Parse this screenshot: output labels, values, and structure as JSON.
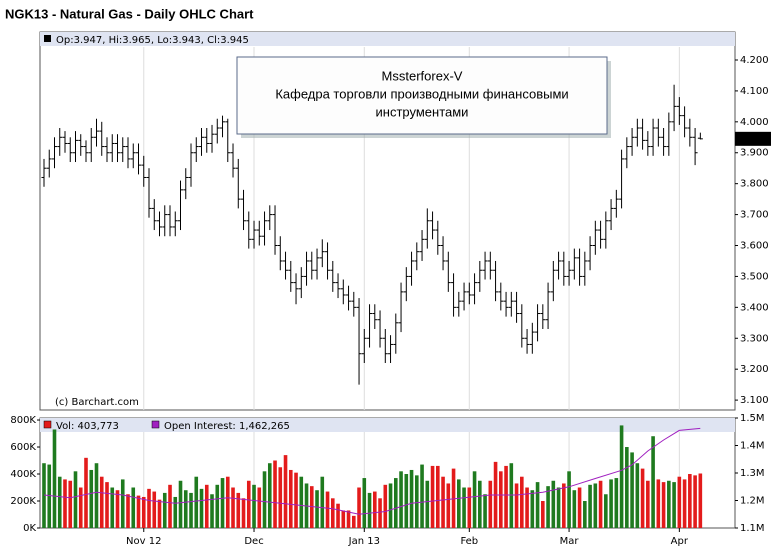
{
  "chart_data": [
    {
      "type": "ohlc",
      "title": "NGK13 - Natural Gas - Daily OHLC Chart",
      "header": "Op:3.947, Hi:3.965, Lo:3.943, Cl:3.945",
      "last_price_label": "3.945",
      "annotation": [
        "Mssterforex-V",
        "Кафедра торговли производными финансовыми",
        "инструментами"
      ],
      "credit": "(c) Barchart.com",
      "color": "#000000",
      "xlim": [
        -0.76,
        131.6
      ],
      "ylim": [
        3.068,
        4.242
      ],
      "yticks": [
        {
          "value": 3.1,
          "label": "3.100"
        },
        {
          "value": 3.2,
          "label": "3.200"
        },
        {
          "value": 3.3,
          "label": "3.300"
        },
        {
          "value": 3.4,
          "label": "3.400"
        },
        {
          "value": 3.5,
          "label": "3.500"
        },
        {
          "value": 3.6,
          "label": "3.600"
        },
        {
          "value": 3.7,
          "label": "3.700"
        },
        {
          "value": 3.8,
          "label": "3.800"
        },
        {
          "value": 3.9,
          "label": "3.900"
        },
        {
          "value": 4.0,
          "label": "4.000"
        },
        {
          "value": 4.1,
          "label": "4.100"
        },
        {
          "value": 4.2,
          "label": "4.200"
        }
      ],
      "grid": "x",
      "ohlc": [
        [
          3.82,
          3.88,
          3.79,
          3.85
        ],
        [
          3.85,
          3.91,
          3.82,
          3.88
        ],
        [
          3.88,
          3.95,
          3.85,
          3.92
        ],
        [
          3.92,
          3.98,
          3.89,
          3.95
        ],
        [
          3.95,
          3.97,
          3.9,
          3.93
        ],
        [
          3.93,
          3.95,
          3.87,
          3.9
        ],
        [
          3.9,
          3.97,
          3.87,
          3.94
        ],
        [
          3.94,
          3.96,
          3.89,
          3.92
        ],
        [
          3.92,
          3.94,
          3.87,
          3.9
        ],
        [
          3.9,
          3.98,
          3.87,
          3.95
        ],
        [
          3.95,
          4.01,
          3.92,
          3.97
        ],
        [
          3.97,
          4.0,
          3.89,
          3.92
        ],
        [
          3.92,
          3.95,
          3.87,
          3.9
        ],
        [
          3.9,
          3.96,
          3.87,
          3.93
        ],
        [
          3.93,
          3.96,
          3.87,
          3.9
        ],
        [
          3.9,
          3.95,
          3.87,
          3.92
        ],
        [
          3.92,
          3.95,
          3.85,
          3.88
        ],
        [
          3.88,
          3.93,
          3.85,
          3.9
        ],
        [
          3.9,
          3.93,
          3.83,
          3.86
        ],
        [
          3.86,
          3.89,
          3.79,
          3.82
        ],
        [
          3.82,
          3.85,
          3.69,
          3.72
        ],
        [
          3.72,
          3.75,
          3.65,
          3.68
        ],
        [
          3.68,
          3.71,
          3.63,
          3.66
        ],
        [
          3.66,
          3.73,
          3.63,
          3.7
        ],
        [
          3.7,
          3.73,
          3.63,
          3.66
        ],
        [
          3.66,
          3.71,
          3.63,
          3.68
        ],
        [
          3.68,
          3.81,
          3.65,
          3.78
        ],
        [
          3.78,
          3.85,
          3.75,
          3.82
        ],
        [
          3.82,
          3.93,
          3.79,
          3.9
        ],
        [
          3.9,
          3.95,
          3.87,
          3.92
        ],
        [
          3.92,
          3.98,
          3.89,
          3.95
        ],
        [
          3.95,
          3.98,
          3.9,
          3.93
        ],
        [
          3.93,
          3.99,
          3.9,
          3.96
        ],
        [
          3.96,
          4.01,
          3.93,
          3.98
        ],
        [
          3.98,
          4.02,
          3.95,
          4.0
        ],
        [
          4.0,
          4.01,
          3.87,
          3.9
        ],
        [
          3.9,
          3.93,
          3.82,
          3.85
        ],
        [
          3.85,
          3.88,
          3.72,
          3.75
        ],
        [
          3.75,
          3.78,
          3.65,
          3.68
        ],
        [
          3.68,
          3.71,
          3.59,
          3.62
        ],
        [
          3.62,
          3.68,
          3.59,
          3.65
        ],
        [
          3.65,
          3.68,
          3.6,
          3.63
        ],
        [
          3.63,
          3.71,
          3.6,
          3.68
        ],
        [
          3.68,
          3.73,
          3.65,
          3.7
        ],
        [
          3.7,
          3.73,
          3.57,
          3.6
        ],
        [
          3.6,
          3.63,
          3.52,
          3.55
        ],
        [
          3.55,
          3.58,
          3.49,
          3.52
        ],
        [
          3.52,
          3.55,
          3.45,
          3.48
        ],
        [
          3.48,
          3.51,
          3.41,
          3.46
        ],
        [
          3.46,
          3.53,
          3.43,
          3.5
        ],
        [
          3.5,
          3.58,
          3.47,
          3.55
        ],
        [
          3.55,
          3.58,
          3.49,
          3.52
        ],
        [
          3.52,
          3.59,
          3.49,
          3.56
        ],
        [
          3.56,
          3.62,
          3.53,
          3.58
        ],
        [
          3.58,
          3.61,
          3.49,
          3.52
        ],
        [
          3.52,
          3.55,
          3.45,
          3.48
        ],
        [
          3.48,
          3.51,
          3.43,
          3.46
        ],
        [
          3.46,
          3.49,
          3.41,
          3.44
        ],
        [
          3.44,
          3.47,
          3.39,
          3.42
        ],
        [
          3.42,
          3.45,
          3.37,
          3.4
        ],
        [
          3.4,
          3.43,
          3.15,
          3.25
        ],
        [
          3.25,
          3.33,
          3.22,
          3.3
        ],
        [
          3.3,
          3.41,
          3.27,
          3.38
        ],
        [
          3.38,
          3.41,
          3.33,
          3.36
        ],
        [
          3.36,
          3.39,
          3.27,
          3.3
        ],
        [
          3.3,
          3.33,
          3.22,
          3.25
        ],
        [
          3.25,
          3.31,
          3.22,
          3.28
        ],
        [
          3.28,
          3.38,
          3.25,
          3.35
        ],
        [
          3.35,
          3.48,
          3.32,
          3.45
        ],
        [
          3.45,
          3.53,
          3.42,
          3.5
        ],
        [
          3.5,
          3.58,
          3.47,
          3.55
        ],
        [
          3.55,
          3.61,
          3.52,
          3.58
        ],
        [
          3.58,
          3.65,
          3.55,
          3.62
        ],
        [
          3.62,
          3.72,
          3.59,
          3.68
        ],
        [
          3.68,
          3.71,
          3.62,
          3.65
        ],
        [
          3.65,
          3.68,
          3.57,
          3.6
        ],
        [
          3.6,
          3.63,
          3.52,
          3.55
        ],
        [
          3.55,
          3.58,
          3.45,
          3.48
        ],
        [
          3.48,
          3.51,
          3.37,
          3.4
        ],
        [
          3.4,
          3.45,
          3.37,
          3.42
        ],
        [
          3.42,
          3.48,
          3.39,
          3.45
        ],
        [
          3.45,
          3.48,
          3.41,
          3.44
        ],
        [
          3.44,
          3.51,
          3.41,
          3.48
        ],
        [
          3.48,
          3.55,
          3.45,
          3.52
        ],
        [
          3.52,
          3.58,
          3.49,
          3.55
        ],
        [
          3.55,
          3.58,
          3.49,
          3.52
        ],
        [
          3.52,
          3.55,
          3.42,
          3.45
        ],
        [
          3.45,
          3.48,
          3.39,
          3.42
        ],
        [
          3.42,
          3.45,
          3.37,
          3.4
        ],
        [
          3.4,
          3.45,
          3.37,
          3.42
        ],
        [
          3.42,
          3.45,
          3.35,
          3.38
        ],
        [
          3.38,
          3.41,
          3.27,
          3.3
        ],
        [
          3.3,
          3.33,
          3.25,
          3.28
        ],
        [
          3.28,
          3.35,
          3.25,
          3.32
        ],
        [
          3.32,
          3.41,
          3.29,
          3.38
        ],
        [
          3.38,
          3.41,
          3.33,
          3.36
        ],
        [
          3.36,
          3.48,
          3.33,
          3.45
        ],
        [
          3.45,
          3.55,
          3.42,
          3.52
        ],
        [
          3.52,
          3.58,
          3.49,
          3.55
        ],
        [
          3.55,
          3.58,
          3.47,
          3.5
        ],
        [
          3.5,
          3.55,
          3.47,
          3.52
        ],
        [
          3.52,
          3.59,
          3.49,
          3.56
        ],
        [
          3.56,
          3.59,
          3.47,
          3.5
        ],
        [
          3.5,
          3.58,
          3.47,
          3.55
        ],
        [
          3.55,
          3.63,
          3.52,
          3.6
        ],
        [
          3.6,
          3.68,
          3.57,
          3.65
        ],
        [
          3.65,
          3.68,
          3.59,
          3.62
        ],
        [
          3.62,
          3.71,
          3.59,
          3.68
        ],
        [
          3.68,
          3.75,
          3.65,
          3.72
        ],
        [
          3.72,
          3.78,
          3.69,
          3.75
        ],
        [
          3.75,
          3.91,
          3.72,
          3.88
        ],
        [
          3.88,
          3.95,
          3.85,
          3.92
        ],
        [
          3.92,
          3.98,
          3.89,
          3.95
        ],
        [
          3.95,
          4.01,
          3.92,
          3.98
        ],
        [
          3.98,
          4.01,
          3.91,
          3.94
        ],
        [
          3.94,
          3.97,
          3.89,
          3.92
        ],
        [
          3.92,
          4.01,
          3.89,
          3.98
        ],
        [
          3.98,
          4.01,
          3.92,
          3.95
        ],
        [
          3.95,
          3.98,
          3.89,
          3.92
        ],
        [
          3.92,
          4.03,
          3.89,
          4.0
        ],
        [
          4.0,
          4.12,
          3.97,
          4.05
        ],
        [
          4.05,
          4.08,
          3.99,
          4.02
        ],
        [
          4.02,
          4.05,
          3.95,
          3.98
        ],
        [
          3.98,
          4.01,
          3.92,
          3.95
        ],
        [
          3.95,
          3.98,
          3.86,
          3.9
        ],
        [
          3.947,
          3.965,
          3.943,
          3.945
        ]
      ]
    },
    {
      "type": "volume",
      "xlim": [
        -0.76,
        131.6
      ],
      "xticks": [
        {
          "value": 19,
          "label": "Nov 12"
        },
        {
          "value": 40,
          "label": "Dec"
        },
        {
          "value": 61,
          "label": "Jan 13"
        },
        {
          "value": 81,
          "label": "Feb"
        },
        {
          "value": 100,
          "label": "Mar"
        },
        {
          "value": 121,
          "label": "Apr"
        }
      ],
      "ylim": [
        0,
        815000
      ],
      "yticks": [
        {
          "value": 0,
          "label": "0K"
        },
        {
          "value": 200000,
          "label": "200K"
        },
        {
          "value": 400000,
          "label": "400K"
        },
        {
          "value": 600000,
          "label": "600K"
        },
        {
          "value": 800000,
          "label": "800K"
        }
      ],
      "y2lim": [
        1100000,
        1500000
      ],
      "y2ticks": [
        {
          "value": 1100000,
          "label": "1.1M"
        },
        {
          "value": 1200000,
          "label": "1.2M"
        },
        {
          "value": 1300000,
          "label": "1.3M"
        },
        {
          "value": 1400000,
          "label": "1.4M"
        },
        {
          "value": 1500000,
          "label": "1.5M"
        }
      ],
      "up_color": "#1f7a1f",
      "down_color": "#e31b1b",
      "series": [
        {
          "name": "Vol: 403,773",
          "color": "#e31b1b",
          "values": [
            480000,
            470000,
            730000,
            380000,
            360000,
            350000,
            420000,
            300000,
            520000,
            430000,
            480000,
            380000,
            340000,
            300000,
            280000,
            360000,
            250000,
            300000,
            240000,
            230000,
            290000,
            270000,
            210000,
            260000,
            320000,
            230000,
            350000,
            280000,
            260000,
            380000,
            290000,
            320000,
            250000,
            320000,
            370000,
            380000,
            300000,
            260000,
            220000,
            350000,
            320000,
            300000,
            420000,
            480000,
            500000,
            450000,
            540000,
            430000,
            410000,
            380000,
            330000,
            310000,
            280000,
            380000,
            270000,
            220000,
            180000,
            130000,
            130000,
            90000,
            300000,
            370000,
            260000,
            270000,
            220000,
            320000,
            330000,
            370000,
            420000,
            400000,
            430000,
            390000,
            470000,
            350000,
            460000,
            460000,
            380000,
            330000,
            440000,
            360000,
            300000,
            300000,
            420000,
            350000,
            250000,
            350000,
            490000,
            420000,
            460000,
            480000,
            330000,
            380000,
            300000,
            280000,
            340000,
            200000,
            310000,
            350000,
            300000,
            330000,
            420000,
            280000,
            300000,
            200000,
            320000,
            330000,
            350000,
            250000,
            360000,
            370000,
            760000,
            600000,
            560000,
            480000,
            440000,
            350000,
            680000,
            360000,
            340000,
            350000,
            340000,
            380000,
            360000,
            400000,
            390000,
            403773
          ]
        },
        {
          "name": "Open Interest: 1,462,265",
          "color": "#a020c0",
          "axis": "y2",
          "x": [
            0,
            5,
            10,
            15,
            20,
            25,
            30,
            35,
            40,
            45,
            50,
            55,
            60,
            65,
            70,
            75,
            80,
            85,
            90,
            95,
            100,
            105,
            110,
            112,
            115,
            118,
            121,
            125
          ],
          "values": [
            1220000,
            1210000,
            1230000,
            1220000,
            1200000,
            1190000,
            1200000,
            1210000,
            1200000,
            1190000,
            1180000,
            1170000,
            1150000,
            1160000,
            1190000,
            1200000,
            1210000,
            1220000,
            1220000,
            1230000,
            1250000,
            1280000,
            1310000,
            1330000,
            1380000,
            1420000,
            1455000,
            1462265
          ]
        }
      ]
    }
  ]
}
